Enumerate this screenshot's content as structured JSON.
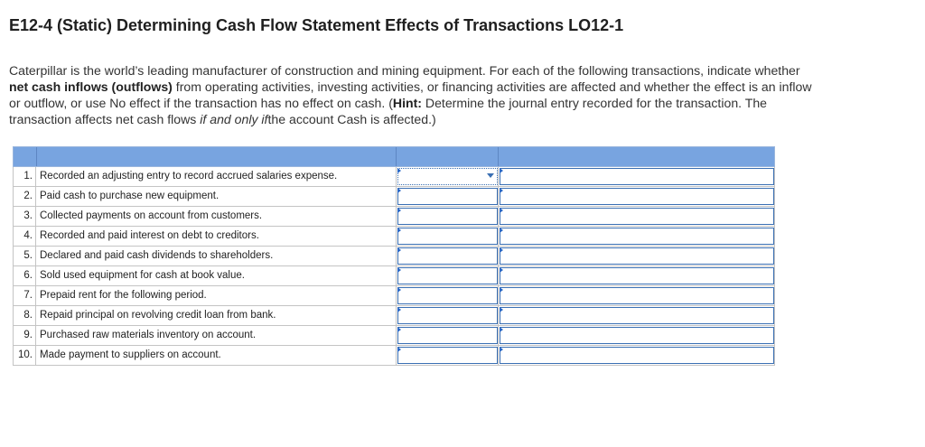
{
  "title": "E12-4 (Static) Determining Cash Flow Statement Effects of Transactions LO12-1",
  "instructions": {
    "part1": "Caterpillar is the world’s leading manufacturer of construction and mining equipment. For each of the following transactions, indicate whether ",
    "bold1": "net cash inflows (outflows)",
    "part2": " from operating activities, investing activities, or financing activities are affected and whether the effect is an inflow or outflow, or use No effect if the transaction has no effect on cash. (",
    "hint_label": "Hint:",
    "part3": " Determine the journal entry recorded for the transaction. The transaction affects net cash flows ",
    "italic1": "if and only if",
    "part4": "the account Cash is affected.)"
  },
  "table": {
    "rows": [
      {
        "num": "1.",
        "text": "Recorded an adjusting entry to record accrued salaries expense."
      },
      {
        "num": "2.",
        "text": "Paid cash to purchase new equipment."
      },
      {
        "num": "3.",
        "text": "Collected payments on account from customers."
      },
      {
        "num": "4.",
        "text": "Recorded and paid interest on debt to creditors."
      },
      {
        "num": "5.",
        "text": "Declared and paid cash dividends to shareholders."
      },
      {
        "num": "6.",
        "text": "Sold used equipment for cash at book value."
      },
      {
        "num": "7.",
        "text": "Prepaid rent for the following period."
      },
      {
        "num": "8.",
        "text": "Repaid principal on revolving credit loan from bank."
      },
      {
        "num": "9.",
        "text": "Purchased raw materials inventory on account."
      },
      {
        "num": "10.",
        "text": "Made payment to suppliers on account."
      }
    ]
  },
  "colors": {
    "header_bg": "#78a4e0",
    "input_border": "#3a6fb3",
    "flag": "#2a68c6"
  },
  "icons": {
    "dropdown": "chevron-down-icon",
    "flag": "answer-flag-icon"
  }
}
